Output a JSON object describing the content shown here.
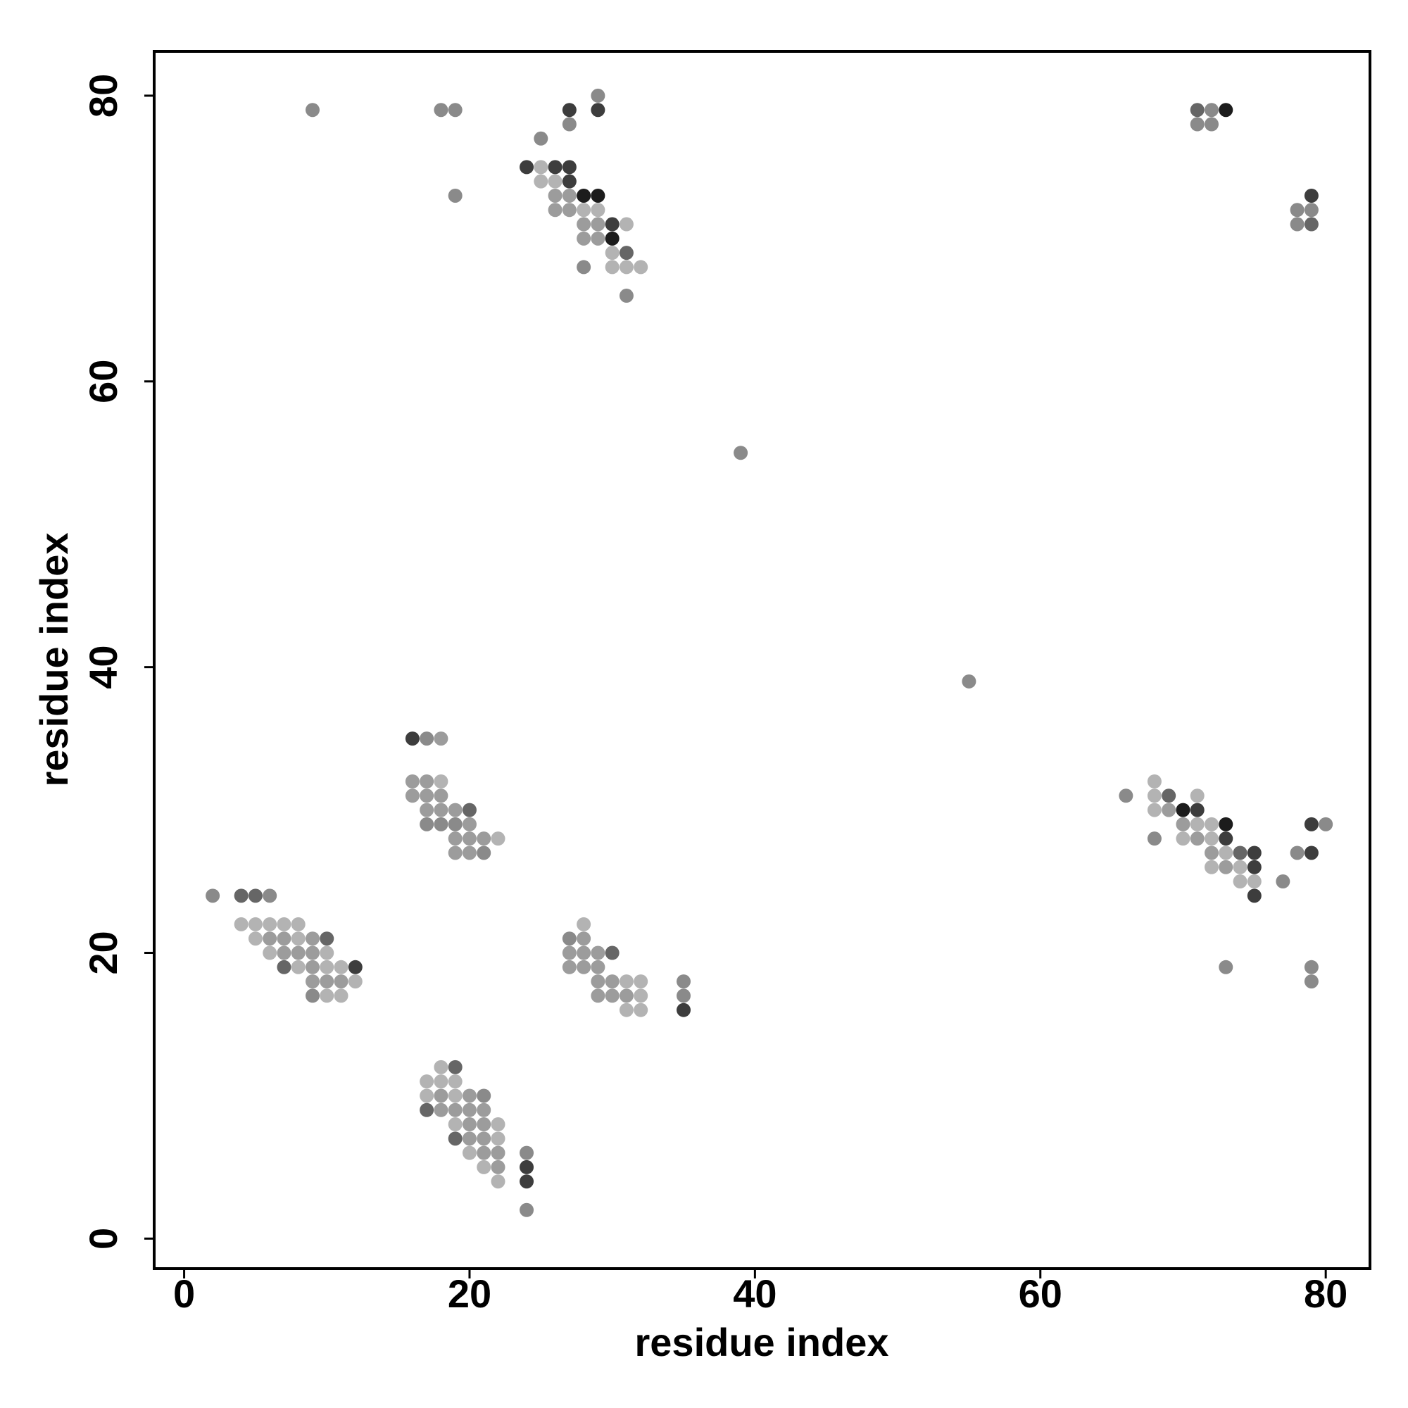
{
  "chart_data": {
    "type": "scatter",
    "x_label": "residue index",
    "y_label": "residue index",
    "xlim": [
      -2.1,
      83.1
    ],
    "ylim": [
      -2.1,
      83.1
    ],
    "xticks": [
      0,
      20,
      40,
      60,
      80
    ],
    "yticks": [
      0,
      20,
      40,
      60,
      80
    ],
    "x": [
      29,
      9,
      18,
      19,
      27,
      29,
      71,
      72,
      73,
      27,
      71,
      72,
      25,
      24,
      25,
      26,
      27,
      25,
      26,
      27,
      19,
      26,
      27,
      28,
      29,
      79,
      26,
      27,
      28,
      29,
      78,
      79,
      28,
      29,
      30,
      31,
      78,
      79,
      28,
      29,
      30,
      30,
      31,
      28,
      30,
      31,
      32,
      31,
      39,
      55,
      16,
      17,
      18,
      16,
      17,
      18,
      68,
      16,
      17,
      18,
      66,
      68,
      69,
      71,
      17,
      18,
      19,
      20,
      68,
      69,
      70,
      71,
      17,
      18,
      19,
      20,
      70,
      71,
      72,
      73,
      79,
      80,
      19,
      20,
      21,
      22,
      68,
      70,
      71,
      72,
      73,
      19,
      20,
      21,
      72,
      73,
      74,
      75,
      78,
      79,
      72,
      73,
      74,
      75,
      74,
      75,
      77,
      2,
      4,
      5,
      6,
      75,
      4,
      5,
      6,
      7,
      8,
      28,
      5,
      6,
      7,
      8,
      9,
      10,
      27,
      28,
      6,
      7,
      8,
      9,
      10,
      27,
      28,
      29,
      30,
      7,
      8,
      9,
      10,
      11,
      12,
      27,
      28,
      29,
      73,
      79,
      9,
      10,
      11,
      12,
      29,
      30,
      31,
      32,
      35,
      79,
      9,
      10,
      11,
      29,
      30,
      31,
      32,
      35,
      31,
      32,
      35,
      18,
      19,
      17,
      18,
      19,
      17,
      18,
      19,
      20,
      21,
      17,
      18,
      19,
      20,
      21,
      19,
      20,
      21,
      22,
      19,
      20,
      21,
      22,
      20,
      21,
      22,
      24,
      21,
      22,
      24,
      22,
      24,
      24
    ],
    "values": [
      80,
      79,
      79,
      79,
      79,
      79,
      79,
      79,
      79,
      78,
      78,
      78,
      77,
      75,
      75,
      75,
      75,
      74,
      74,
      74,
      73,
      73,
      73,
      73,
      73,
      73,
      72,
      72,
      72,
      72,
      72,
      72,
      71,
      71,
      71,
      71,
      71,
      71,
      70,
      70,
      70,
      69,
      69,
      68,
      68,
      68,
      68,
      66,
      55,
      39,
      35,
      35,
      35,
      32,
      32,
      32,
      32,
      31,
      31,
      31,
      31,
      31,
      31,
      31,
      30,
      30,
      30,
      30,
      30,
      30,
      30,
      30,
      29,
      29,
      29,
      29,
      29,
      29,
      29,
      29,
      29,
      29,
      28,
      28,
      28,
      28,
      28,
      28,
      28,
      28,
      28,
      27,
      27,
      27,
      27,
      27,
      27,
      27,
      27,
      27,
      26,
      26,
      26,
      26,
      25,
      25,
      25,
      24,
      24,
      24,
      24,
      24,
      22,
      22,
      22,
      22,
      22,
      22,
      21,
      21,
      21,
      21,
      21,
      21,
      21,
      21,
      20,
      20,
      20,
      20,
      20,
      20,
      20,
      20,
      20,
      19,
      19,
      19,
      19,
      19,
      19,
      19,
      19,
      19,
      19,
      19,
      18,
      18,
      18,
      18,
      18,
      18,
      18,
      18,
      18,
      18,
      17,
      17,
      17,
      17,
      17,
      17,
      17,
      17,
      16,
      16,
      16,
      12,
      12,
      11,
      11,
      11,
      10,
      10,
      10,
      10,
      10,
      9,
      9,
      9,
      9,
      9,
      8,
      8,
      8,
      8,
      7,
      7,
      7,
      7,
      6,
      6,
      6,
      6,
      5,
      5,
      5,
      4,
      4,
      2
    ],
    "colors": [
      "#8a8a8a",
      "#8a8a8a",
      "#8a8a8a",
      "#8a8a8a",
      "#3d3d3d",
      "#3d3d3d",
      "#666666",
      "#8a8a8a",
      "#1c1c1c",
      "#8a8a8a",
      "#8a8a8a",
      "#8a8a8a",
      "#8a8a8a",
      "#3d3d3d",
      "#b3b3b3",
      "#3d3d3d",
      "#3d3d3d",
      "#b3b3b3",
      "#b3b3b3",
      "#3d3d3d",
      "#8a8a8a",
      "#9c9c9c",
      "#9c9c9c",
      "#1c1c1c",
      "#1c1c1c",
      "#3d3d3d",
      "#9c9c9c",
      "#9c9c9c",
      "#b3b3b3",
      "#b3b3b3",
      "#8a8a8a",
      "#8a8a8a",
      "#9c9c9c",
      "#9c9c9c",
      "#3d3d3d",
      "#b3b3b3",
      "#8a8a8a",
      "#666666",
      "#9c9c9c",
      "#9c9c9c",
      "#1c1c1c",
      "#b3b3b3",
      "#666666",
      "#8a8a8a",
      "#b3b3b3",
      "#b3b3b3",
      "#b3b3b3",
      "#8a8a8a",
      "#8a8a8a",
      "#8a8a8a",
      "#3d3d3d",
      "#8a8a8a",
      "#9c9c9c",
      "#9c9c9c",
      "#9c9c9c",
      "#b3b3b3",
      "#b3b3b3",
      "#9c9c9c",
      "#9c9c9c",
      "#9c9c9c",
      "#8a8a8a",
      "#b3b3b3",
      "#666666",
      "#b3b3b3",
      "#9c9c9c",
      "#9c9c9c",
      "#9c9c9c",
      "#666666",
      "#b3b3b3",
      "#9c9c9c",
      "#1c1c1c",
      "#3d3d3d",
      "#8a8a8a",
      "#8a8a8a",
      "#8a8a8a",
      "#9c9c9c",
      "#9c9c9c",
      "#b3b3b3",
      "#b3b3b3",
      "#1c1c1c",
      "#3d3d3d",
      "#8a8a8a",
      "#9c9c9c",
      "#9c9c9c",
      "#9c9c9c",
      "#b3b3b3",
      "#8a8a8a",
      "#b3b3b3",
      "#9c9c9c",
      "#b3b3b3",
      "#3d3d3d",
      "#9c9c9c",
      "#9c9c9c",
      "#8a8a8a",
      "#9c9c9c",
      "#b3b3b3",
      "#666666",
      "#3d3d3d",
      "#8a8a8a",
      "#3d3d3d",
      "#b3b3b3",
      "#9c9c9c",
      "#b3b3b3",
      "#3d3d3d",
      "#b3b3b3",
      "#b3b3b3",
      "#8a8a8a",
      "#8a8a8a",
      "#666666",
      "#666666",
      "#8a8a8a",
      "#3d3d3d",
      "#b3b3b3",
      "#b3b3b3",
      "#b3b3b3",
      "#b3b3b3",
      "#b3b3b3",
      "#b3b3b3",
      "#b3b3b3",
      "#9c9c9c",
      "#9c9c9c",
      "#b3b3b3",
      "#9c9c9c",
      "#666666",
      "#8a8a8a",
      "#9c9c9c",
      "#b3b3b3",
      "#9c9c9c",
      "#9c9c9c",
      "#9c9c9c",
      "#b3b3b3",
      "#9c9c9c",
      "#9c9c9c",
      "#9c9c9c",
      "#666666",
      "#666666",
      "#b3b3b3",
      "#9c9c9c",
      "#b3b3b3",
      "#b3b3b3",
      "#3d3d3d",
      "#9c9c9c",
      "#9c9c9c",
      "#9c9c9c",
      "#8a8a8a",
      "#8a8a8a",
      "#9c9c9c",
      "#9c9c9c",
      "#9c9c9c",
      "#b3b3b3",
      "#9c9c9c",
      "#9c9c9c",
      "#b3b3b3",
      "#b3b3b3",
      "#8a8a8a",
      "#8a8a8a",
      "#8a8a8a",
      "#b3b3b3",
      "#b3b3b3",
      "#9c9c9c",
      "#9c9c9c",
      "#9c9c9c",
      "#b3b3b3",
      "#8a8a8a",
      "#b3b3b3",
      "#b3b3b3",
      "#3d3d3d",
      "#b3b3b3",
      "#666666",
      "#b3b3b3",
      "#b3b3b3",
      "#b3b3b3",
      "#b3b3b3",
      "#9c9c9c",
      "#b3b3b3",
      "#9c9c9c",
      "#8a8a8a",
      "#666666",
      "#9c9c9c",
      "#9c9c9c",
      "#9c9c9c",
      "#9c9c9c",
      "#b3b3b3",
      "#9c9c9c",
      "#9c9c9c",
      "#b3b3b3",
      "#666666",
      "#9c9c9c",
      "#9c9c9c",
      "#b3b3b3",
      "#b3b3b3",
      "#9c9c9c",
      "#9c9c9c",
      "#8a8a8a",
      "#b3b3b3",
      "#9c9c9c",
      "#3d3d3d",
      "#b3b3b3",
      "#3d3d3d",
      "#8a8a8a"
    ]
  }
}
